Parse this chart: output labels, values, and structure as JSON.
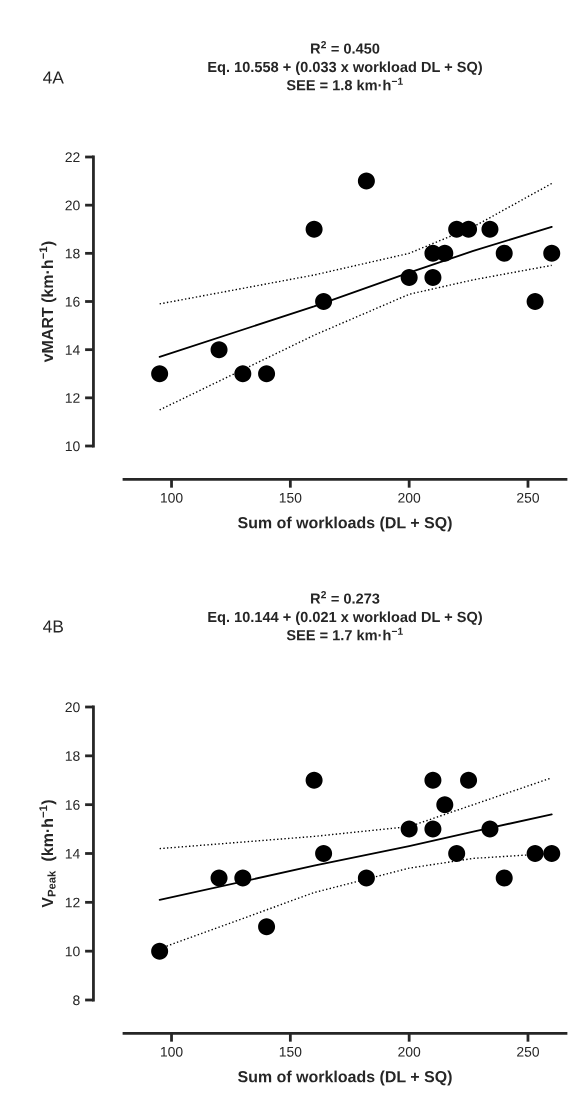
{
  "chart_data": [
    {
      "type": "scatter",
      "title": "R$^{2}$ = 0.450\nEq. 10.558 + (0.033 x workload DL + SQ)\nSEE = 1.8 km·h$^{−1}$",
      "xlabel": "Sum of workloads (DL + SQ)",
      "ylabel": "vMART (km·h$^{−1}$)",
      "annotations": [
        "4A"
      ],
      "xlim": [
        80,
        266
      ],
      "xticks": [
        100,
        150,
        200,
        250
      ],
      "ylim": [
        10,
        22
      ],
      "yticks": [
        10,
        12,
        14,
        16,
        18,
        20,
        22
      ],
      "marker": "circle",
      "series": [
        {
          "color": "#000000",
          "x": [
            95,
            120,
            130,
            140,
            160,
            164,
            182,
            200,
            210,
            210,
            215,
            220,
            225,
            234,
            240,
            253,
            260
          ],
          "values": [
            13,
            14,
            13,
            13,
            19,
            16,
            21,
            17,
            17,
            18,
            18,
            19,
            19,
            19,
            18,
            16,
            18
          ]
        },
        {
          "type": "line",
          "color": "#000000",
          "marker": "none",
          "line_style": "solid",
          "x": [
            95,
            160,
            200,
            227,
            260
          ],
          "values": [
            13.7,
            15.8,
            17.2,
            18.1,
            19.1
          ]
        },
        {
          "type": "line",
          "color": "#000000",
          "marker": "none",
          "line_style": "dotted",
          "x": [
            95,
            160,
            200,
            227,
            260
          ],
          "values": [
            11.5,
            14.6,
            16.3,
            16.9,
            17.5
          ]
        },
        {
          "type": "line",
          "color": "#000000",
          "marker": "none",
          "line_style": "dotted",
          "x": [
            95,
            160,
            200,
            227,
            260
          ],
          "values": [
            15.9,
            17.1,
            18.0,
            19.1,
            20.9
          ]
        }
      ]
    },
    {
      "type": "scatter",
      "title": "R$^{2}$ = 0.273\nEq. 10.144 + (0.021 x workload DL + SQ)\nSEE = 1.7 km·h$^{−1}$",
      "xlabel": "Sum of workloads (DL + SQ)",
      "ylabel": "V$_{Peak}$  (km·h$^{−1}$)",
      "annotations": [
        "4B"
      ],
      "xlim": [
        80,
        266
      ],
      "xticks": [
        100,
        150,
        200,
        250
      ],
      "ylim": [
        8,
        20
      ],
      "yticks": [
        8,
        10,
        12,
        14,
        16,
        18,
        20
      ],
      "marker": "circle",
      "series": [
        {
          "color": "#000000",
          "x": [
            95,
            120,
            130,
            140,
            160,
            164,
            182,
            200,
            210,
            210,
            215,
            220,
            225,
            234,
            240,
            253,
            260
          ],
          "values": [
            10,
            13,
            13,
            11,
            17,
            14,
            13,
            15,
            17,
            15,
            16,
            14,
            17,
            15,
            13,
            14,
            14
          ]
        },
        {
          "type": "line",
          "color": "#000000",
          "marker": "none",
          "line_style": "solid",
          "x": [
            95,
            160,
            200,
            227,
            260
          ],
          "values": [
            12.1,
            13.5,
            14.3,
            14.9,
            15.6
          ]
        },
        {
          "type": "line",
          "color": "#000000",
          "marker": "none",
          "line_style": "dotted",
          "x": [
            95,
            160,
            200,
            227,
            260
          ],
          "values": [
            10.1,
            12.4,
            13.4,
            13.8,
            14.0
          ]
        },
        {
          "type": "line",
          "color": "#000000",
          "marker": "none",
          "line_style": "dotted",
          "x": [
            95,
            160,
            200,
            227,
            260
          ],
          "values": [
            14.2,
            14.7,
            15.1,
            16.0,
            17.1
          ]
        }
      ]
    }
  ]
}
